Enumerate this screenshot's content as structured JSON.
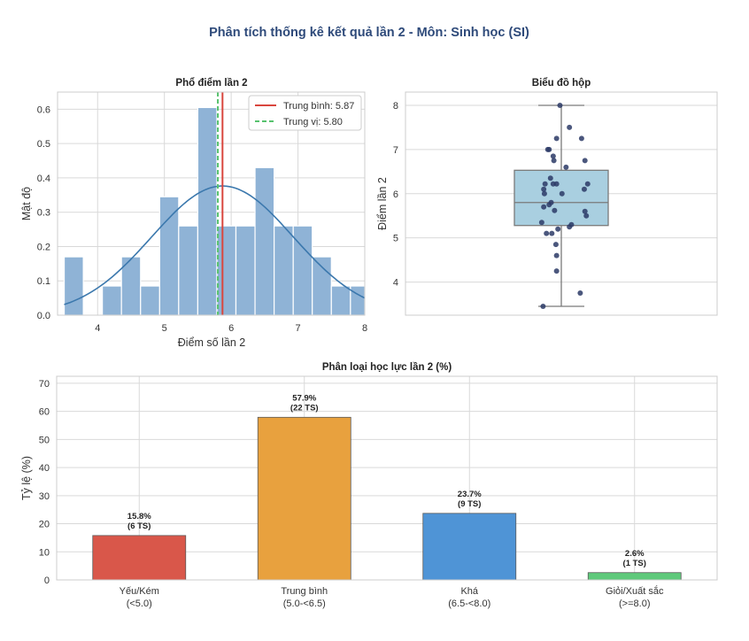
{
  "suptitle": "Phân tích thống kê kết quả lần 2 - Môn: Sinh học (SI)",
  "chart_data": [
    {
      "type": "histogram",
      "title": "Phổ điểm lần 2",
      "xlabel": "Điểm số lần 2",
      "ylabel": "Mật độ",
      "xlim": [
        3.4,
        8.0
      ],
      "ylim": [
        0,
        0.65
      ],
      "xticks": [
        "4",
        "5",
        "6",
        "7",
        "8"
      ],
      "yticks": [
        "0.0",
        "0.1",
        "0.2",
        "0.3",
        "0.4",
        "0.5",
        "0.6"
      ],
      "bins": [
        {
          "x0": 3.5,
          "x1": 3.786,
          "density": 0.17
        },
        {
          "x0": 4.071,
          "x1": 4.357,
          "density": 0.085
        },
        {
          "x0": 4.357,
          "x1": 4.643,
          "density": 0.17
        },
        {
          "x0": 4.643,
          "x1": 4.929,
          "density": 0.085
        },
        {
          "x0": 4.929,
          "x1": 5.214,
          "density": 0.345
        },
        {
          "x0": 5.214,
          "x1": 5.5,
          "density": 0.26
        },
        {
          "x0": 5.5,
          "x1": 5.786,
          "density": 0.605
        },
        {
          "x0": 5.786,
          "x1": 6.071,
          "density": 0.26
        },
        {
          "x0": 6.071,
          "x1": 6.357,
          "density": 0.26
        },
        {
          "x0": 6.357,
          "x1": 6.643,
          "density": 0.43
        },
        {
          "x0": 6.643,
          "x1": 6.929,
          "density": 0.26
        },
        {
          "x0": 6.929,
          "x1": 7.214,
          "density": 0.26
        },
        {
          "x0": 7.214,
          "x1": 7.5,
          "density": 0.17
        },
        {
          "x0": 7.5,
          "x1": 7.786,
          "density": 0.085
        },
        {
          "x0": 7.786,
          "x1": 8.0,
          "density": 0.085
        }
      ],
      "kde": {
        "mean": 5.87,
        "sd": 1.06
      },
      "mean_line": 5.87,
      "median_line": 5.8,
      "legend": [
        "Trung bình: 5.87",
        "Trung vị: 5.80"
      ],
      "legend_position": "top-right",
      "colors": {
        "bar": "#8fb3d6",
        "kde": "#3b78ad",
        "mean": "#d9463e",
        "median": "#57c26e"
      }
    },
    {
      "type": "boxplot",
      "title": "Biểu đồ hộp",
      "ylabel": "Điểm lần 2",
      "ylim": [
        3.25,
        8.3
      ],
      "yticks": [
        "4",
        "5",
        "6",
        "7",
        "8"
      ],
      "box": {
        "whisker_low": 3.45,
        "q1": 5.28,
        "median": 5.8,
        "q3": 6.53,
        "whisker_high": 8.0
      },
      "points": [
        {
          "jitter": -0.27,
          "y": 3.45
        },
        {
          "jitter": 0.28,
          "y": 3.75
        },
        {
          "jitter": -0.07,
          "y": 4.25
        },
        {
          "jitter": -0.07,
          "y": 4.6
        },
        {
          "jitter": -0.08,
          "y": 4.85
        },
        {
          "jitter": -0.14,
          "y": 5.1
        },
        {
          "jitter": -0.22,
          "y": 5.1
        },
        {
          "jitter": -0.05,
          "y": 5.2
        },
        {
          "jitter": 0.12,
          "y": 5.25
        },
        {
          "jitter": 0.15,
          "y": 5.3
        },
        {
          "jitter": -0.29,
          "y": 5.35
        },
        {
          "jitter": 0.37,
          "y": 5.5
        },
        {
          "jitter": 0.35,
          "y": 5.6
        },
        {
          "jitter": -0.1,
          "y": 5.62
        },
        {
          "jitter": -0.26,
          "y": 5.7
        },
        {
          "jitter": -0.18,
          "y": 5.75
        },
        {
          "jitter": -0.15,
          "y": 5.8
        },
        {
          "jitter": -0.25,
          "y": 6.0
        },
        {
          "jitter": 0.01,
          "y": 6.0
        },
        {
          "jitter": -0.26,
          "y": 6.1
        },
        {
          "jitter": 0.34,
          "y": 6.1
        },
        {
          "jitter": -0.12,
          "y": 6.22
        },
        {
          "jitter": -0.07,
          "y": 6.22
        },
        {
          "jitter": -0.24,
          "y": 6.22
        },
        {
          "jitter": 0.39,
          "y": 6.22
        },
        {
          "jitter": -0.16,
          "y": 6.35
        },
        {
          "jitter": 0.07,
          "y": 6.6
        },
        {
          "jitter": -0.11,
          "y": 6.75
        },
        {
          "jitter": 0.35,
          "y": 6.75
        },
        {
          "jitter": -0.12,
          "y": 6.85
        },
        {
          "jitter": -0.18,
          "y": 7.0
        },
        {
          "jitter": -0.2,
          "y": 7.0
        },
        {
          "jitter": -0.07,
          "y": 7.25
        },
        {
          "jitter": 0.3,
          "y": 7.25
        },
        {
          "jitter": 0.12,
          "y": 7.5
        },
        {
          "jitter": -0.02,
          "y": 8.0
        }
      ],
      "colors": {
        "box": "#a9cfe0",
        "point": "#2c3a66"
      }
    },
    {
      "type": "bar",
      "title": "Phân loại học lực lần 2 (%)",
      "ylabel": "Tỷ lệ (%)",
      "ylim": [
        0,
        72.5
      ],
      "yticks": [
        "0",
        "10",
        "20",
        "30",
        "40",
        "50",
        "60",
        "70"
      ],
      "categories": [
        {
          "name": "Yếu/Kém",
          "range": "(<5.0)"
        },
        {
          "name": "Trung bình",
          "range": "(5.0-<6.5)"
        },
        {
          "name": "Khá",
          "range": "(6.5-<8.0)"
        },
        {
          "name": "Giỏi/Xuất sắc",
          "range": "(>=8.0)"
        }
      ],
      "values": [
        15.8,
        57.9,
        23.7,
        2.6
      ],
      "labels": [
        {
          "pct": "15.8%",
          "count": "(6 TS)"
        },
        {
          "pct": "57.9%",
          "count": "(22 TS)"
        },
        {
          "pct": "23.7%",
          "count": "(9 TS)"
        },
        {
          "pct": "2.6%",
          "count": "(1 TS)"
        }
      ],
      "colors": [
        "#d9574a",
        "#e8a13e",
        "#4f94d6",
        "#5fc97b"
      ]
    }
  ]
}
